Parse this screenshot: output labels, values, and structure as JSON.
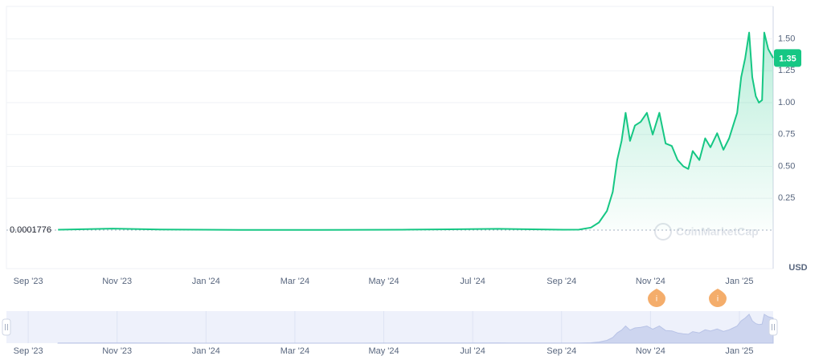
{
  "chart_data": {
    "type": "line",
    "color": "#16c784",
    "x": [
      0.67,
      1.9,
      2.98,
      4.79,
      6.6,
      8.41,
      9.49,
      10.58,
      12.03,
      12.39,
      12.66,
      12.84,
      13.02,
      13.15,
      13.25,
      13.35,
      13.44,
      13.54,
      13.65,
      13.78,
      13.92,
      14.05,
      14.2,
      14.34,
      14.48,
      14.61,
      14.74,
      14.85,
      14.95,
      15.1,
      15.23,
      15.35,
      15.5,
      15.64,
      15.77,
      15.86,
      15.95,
      16.04,
      16.13,
      16.22,
      16.29,
      16.37,
      16.44,
      16.51,
      16.56,
      16.65,
      16.76
    ],
    "values": [
      0.003,
      0.012,
      0.005,
      0.002,
      0.002,
      0.003,
      0.006,
      0.01,
      0.003,
      0.004,
      0.02,
      0.06,
      0.15,
      0.3,
      0.55,
      0.7,
      0.92,
      0.7,
      0.82,
      0.85,
      0.92,
      0.75,
      0.92,
      0.68,
      0.66,
      0.55,
      0.5,
      0.48,
      0.62,
      0.55,
      0.72,
      0.65,
      0.76,
      0.63,
      0.72,
      0.82,
      0.92,
      1.2,
      1.35,
      1.55,
      1.2,
      1.05,
      1.0,
      1.02,
      1.55,
      1.42,
      1.35
    ],
    "xlim": [
      -0.49,
      16.76
    ],
    "xticks": [
      {
        "value": 0,
        "label": "Sep '23"
      },
      {
        "value": 2,
        "label": "Nov '23"
      },
      {
        "value": 4,
        "label": "Jan '24"
      },
      {
        "value": 6,
        "label": "Mar '24"
      },
      {
        "value": 8,
        "label": "May '24"
      },
      {
        "value": 10,
        "label": "Jul '24"
      },
      {
        "value": 12,
        "label": "Sep '24"
      },
      {
        "value": 14,
        "label": "Nov '24"
      },
      {
        "value": 16,
        "label": "Jan '25"
      }
    ],
    "ylim": [
      -0.302,
      1.755
    ],
    "yticks": [
      0.25,
      {
        "value": 0.5,
        "label": "0.50"
      },
      0.75,
      {
        "value": 1.0,
        "label": "1.00"
      },
      1.25,
      {
        "value": 1.5,
        "label": "1.50"
      }
    ],
    "grid": true,
    "reference_price": 0.0001776,
    "current_price": 1.35,
    "unit": "USD",
    "watermark": "CoinMarketCap",
    "event_marker": "i"
  }
}
